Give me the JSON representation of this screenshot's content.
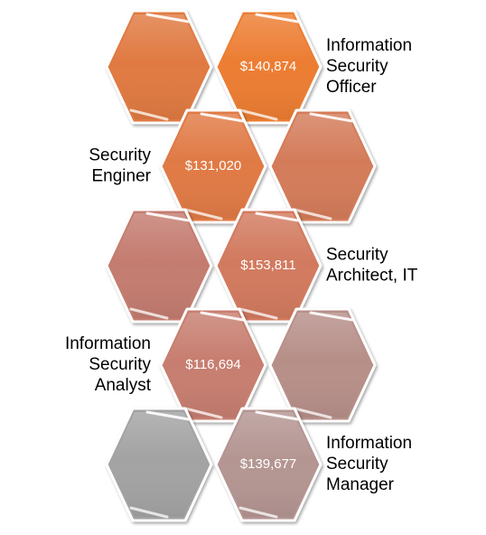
{
  "rows": [
    {
      "label": [
        "Information",
        "Security",
        "Officer"
      ],
      "label_side": "right",
      "value": "$140,874",
      "colors": {
        "value_hex": "#ec7d33",
        "plain_hex": "#e07a42"
      }
    },
    {
      "label": [
        "Security",
        "Enginer"
      ],
      "label_side": "left",
      "value": "$131,020",
      "colors": {
        "value_hex": "#e07a44",
        "plain_hex": "#d47b5a"
      }
    },
    {
      "label": [
        "Security",
        "Architect, IT"
      ],
      "label_side": "right",
      "value": "$153,811",
      "colors": {
        "value_hex": "#d27a5e",
        "plain_hex": "#c47c70"
      }
    },
    {
      "label": [
        "Information",
        "Security",
        "Analyst"
      ],
      "label_side": "left",
      "value": "$116,694",
      "colors": {
        "value_hex": "#c77e70",
        "plain_hex": "#b78f89"
      }
    },
    {
      "label": [
        "Information",
        "Security",
        "Manager"
      ],
      "label_side": "right",
      "value": "$139,677",
      "colors": {
        "value_hex": "#b49592",
        "plain_hex": "#a3a3a3"
      }
    }
  ]
}
